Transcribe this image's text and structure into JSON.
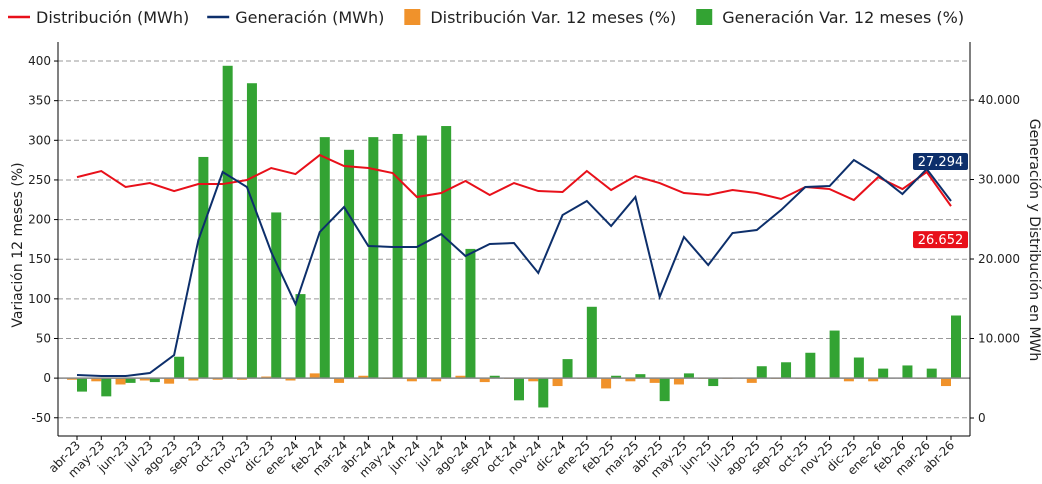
{
  "chart_data": {
    "type": "bar",
    "ylabel": "Variación 12 meses (%)",
    "y2label": "Generación y Distribución en MWh",
    "categories": [
      "abr-23",
      "may-23",
      "jun-23",
      "jul-23",
      "ago-23",
      "sep-23",
      "oct-23",
      "nov-23",
      "dic-23",
      "ene-24",
      "feb-24",
      "mar-24",
      "abr-24",
      "may-24",
      "jun-24",
      "jul-24",
      "ago-24",
      "sep-24",
      "oct-24",
      "nov-24",
      "dic-24",
      "ene-25",
      "feb-25",
      "mar-25",
      "abr-25",
      "may-25",
      "jun-25",
      "jul-25",
      "ago-25",
      "sep-25",
      "oct-25",
      "nov-25",
      "dic-25",
      "ene-26",
      "feb-26",
      "mar-26",
      "abr-26"
    ],
    "series": [
      {
        "name": "Distribución (MWh)",
        "type": "line",
        "axis": "y2",
        "color": "#e8101a",
        "values": [
          30300,
          31070,
          29060,
          29560,
          28550,
          29430,
          29430,
          29940,
          31450,
          30690,
          33080,
          31700,
          31450,
          30820,
          27800,
          28300,
          29810,
          28050,
          29560,
          28550,
          28430,
          31070,
          28680,
          30440,
          29560,
          28300,
          28050,
          28680,
          28300,
          27550,
          29060,
          28800,
          27420,
          30300,
          28800,
          30940,
          26652
        ],
        "value_labels": [
          null,
          null,
          null,
          null,
          null,
          null,
          null,
          null,
          null,
          null,
          null,
          null,
          null,
          null,
          null,
          null,
          null,
          null,
          null,
          null,
          null,
          null,
          null,
          null,
          null,
          null,
          null,
          null,
          null,
          null,
          null,
          null,
          null,
          null,
          null,
          null,
          "26.652"
        ]
      },
      {
        "name": "Generación (MWh)",
        "type": "line",
        "axis": "y2",
        "color": "#0d2f6b",
        "values": [
          5410,
          5280,
          5280,
          5660,
          7920,
          22390,
          30940,
          29060,
          20880,
          14340,
          23400,
          26540,
          21640,
          21510,
          21510,
          23140,
          20380,
          21890,
          22010,
          18240,
          25530,
          27300,
          24150,
          27800,
          15220,
          22770,
          19250,
          23270,
          23650,
          26160,
          29060,
          29180,
          32450,
          30570,
          28180,
          31320,
          27294
        ],
        "value_labels": [
          null,
          null,
          null,
          null,
          null,
          null,
          null,
          null,
          null,
          null,
          null,
          null,
          null,
          null,
          null,
          null,
          null,
          null,
          null,
          null,
          null,
          null,
          null,
          null,
          null,
          null,
          null,
          null,
          null,
          null,
          null,
          null,
          null,
          null,
          null,
          null,
          "27.294"
        ]
      },
      {
        "name": "Distribución Var. 12 meses (%)",
        "type": "bar",
        "color": "#f0922b",
        "values": [
          -2,
          -4,
          -8,
          -3,
          -7,
          -3,
          -2,
          -2,
          2,
          -3,
          6,
          -6,
          3,
          -1,
          -4,
          -4,
          3,
          -5,
          -1,
          -4,
          -10,
          -1,
          -13,
          -4,
          -6,
          -8,
          -1,
          -1,
          -6,
          -1,
          -1,
          -1,
          -4,
          -4,
          0,
          -1,
          -10
        ]
      },
      {
        "name": "Generación Var. 12 meses (%)",
        "type": "bar",
        "color": "#33a333",
        "values": [
          -17,
          -23,
          -6,
          -5,
          27,
          279,
          394,
          372,
          209,
          106,
          304,
          288,
          304,
          308,
          306,
          318,
          163,
          3,
          -28,
          -37,
          24,
          90,
          3,
          5,
          -29,
          6,
          -10,
          0,
          15,
          20,
          32,
          60,
          26,
          12,
          16,
          12,
          79
        ]
      }
    ],
    "ylim": [
      -73,
      424
    ],
    "yticks": [
      -50,
      0,
      50,
      100,
      150,
      200,
      250,
      300,
      350,
      400
    ],
    "y2lim": [
      -2264,
      47300
    ],
    "y2ticks": [
      0,
      {
        "value": 10000,
        "label": "10.000"
      },
      {
        "value": 20000,
        "label": "20.000"
      },
      {
        "value": 30000,
        "label": "30.000"
      },
      {
        "value": 40000,
        "label": "40.000"
      }
    ],
    "grid": true
  }
}
